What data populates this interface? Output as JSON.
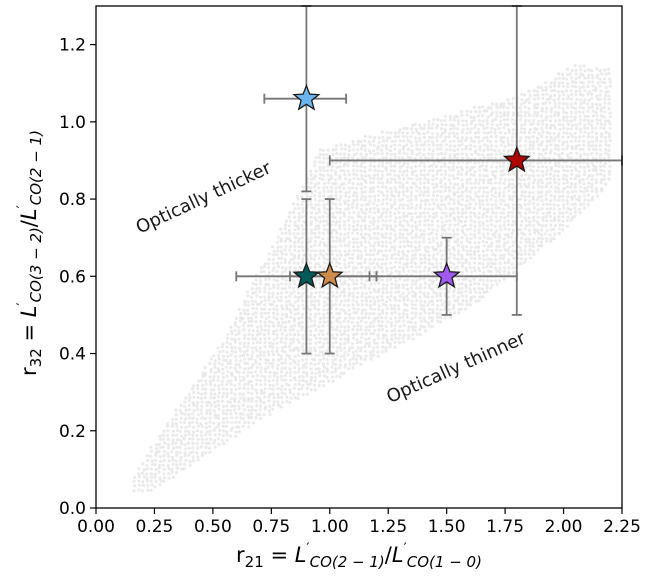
{
  "chart_data": {
    "type": "scatter",
    "title": "",
    "xlabel": {
      "prefix": "r",
      "prefix_sub": "21",
      "equals": " = ",
      "num": "L",
      "num_sub": "CO(2 − 1)",
      "den": "L",
      "den_sub": "CO(1 − 0)"
    },
    "ylabel": {
      "prefix": "r",
      "prefix_sub": "32",
      "equals": " = ",
      "num": "L",
      "num_sub": "CO(3 − 2)",
      "den": "L",
      "den_sub": "CO(2 − 1)"
    },
    "xlim": [
      0.0,
      2.25
    ],
    "ylim": [
      0.0,
      1.3
    ],
    "xticks": [
      0.0,
      0.25,
      0.5,
      0.75,
      1.0,
      1.25,
      1.5,
      1.75,
      2.0,
      2.25
    ],
    "xtick_labels": [
      "0.00",
      "0.25",
      "0.50",
      "0.75",
      "1.00",
      "1.25",
      "1.50",
      "1.75",
      "2.00",
      "2.25"
    ],
    "yticks": [
      0.0,
      0.2,
      0.4,
      0.6,
      0.8,
      1.0,
      1.2
    ],
    "ytick_labels": [
      "0.0",
      "0.2",
      "0.4",
      "0.6",
      "0.8",
      "1.0",
      "1.2"
    ],
    "grid": false,
    "model_region": {
      "color": "#d9d9d9",
      "polygon": [
        [
          0.15,
          0.04
        ],
        [
          0.22,
          0.04
        ],
        [
          0.75,
          0.25
        ],
        [
          1.6,
          0.52
        ],
        [
          2.0,
          0.72
        ],
        [
          2.2,
          0.85
        ],
        [
          2.2,
          1.14
        ],
        [
          2.05,
          1.15
        ],
        [
          1.8,
          1.07
        ],
        [
          0.95,
          0.93
        ],
        [
          0.85,
          0.8
        ],
        [
          0.55,
          0.45
        ],
        [
          0.3,
          0.22
        ],
        [
          0.15,
          0.08
        ]
      ]
    },
    "points": [
      {
        "x": 0.9,
        "y": 1.06,
        "xerr": [
          0.18,
          0.17
        ],
        "yerr": [
          0.24,
          0.24
        ],
        "color": "#6cb4ee",
        "marker": "star"
      },
      {
        "x": 1.8,
        "y": 0.9,
        "xerr": [
          0.8,
          0.45
        ],
        "yerr": [
          0.4,
          0.4
        ],
        "color": "#b00000",
        "marker": "star"
      },
      {
        "x": 0.9,
        "y": 0.6,
        "xerr": [
          0.3,
          0.3
        ],
        "yerr": [
          0.2,
          0.2
        ],
        "color": "#005a5a",
        "marker": "star"
      },
      {
        "x": 1.0,
        "y": 0.6,
        "xerr": [
          0.17,
          0.2
        ],
        "yerr": [
          0.2,
          0.2
        ],
        "color": "#cd8c4b",
        "marker": "star"
      },
      {
        "x": 1.5,
        "y": 0.6,
        "xerr": [
          0.33,
          0.3
        ],
        "yerr": [
          0.1,
          0.1
        ],
        "color": "#a05af0",
        "marker": "star"
      }
    ],
    "annotations": [
      {
        "text": "Optically thicker",
        "x": 0.47,
        "y": 0.79,
        "rotation": -25
      },
      {
        "text": "Optically thinner",
        "x": 1.55,
        "y": 0.35,
        "rotation": -24
      }
    ]
  }
}
